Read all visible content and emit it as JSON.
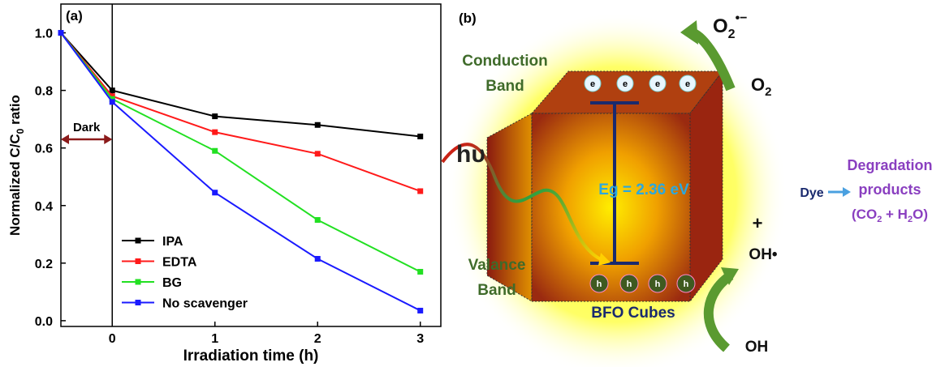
{
  "chart_data": {
    "type": "line",
    "panel_label": "(a)",
    "x_label": "Irradiation time (h)",
    "y_label": {
      "main": "Normalized C/C",
      "sub": "0",
      "rest": " ratio"
    },
    "x": [
      -0.5,
      0,
      1,
      2,
      3
    ],
    "series": [
      {
        "name": "IPA",
        "color": "#000000",
        "values": [
          1.0,
          0.8,
          0.71,
          0.68,
          0.64
        ]
      },
      {
        "name": "EDTA",
        "color": "#ff1a1a",
        "values": [
          1.0,
          0.78,
          0.655,
          0.58,
          0.45
        ]
      },
      {
        "name": "BG",
        "color": "#22e022",
        "values": [
          1.0,
          0.77,
          0.59,
          0.35,
          0.17
        ]
      },
      {
        "name": "No scavenger",
        "color": "#1a1aff",
        "values": [
          1.0,
          0.76,
          0.445,
          0.215,
          0.035
        ]
      }
    ],
    "xlim": [
      -0.5,
      3.2
    ],
    "xticks": [
      0,
      1,
      2,
      3
    ],
    "ylim": [
      -0.02,
      1.1
    ],
    "yticks": [
      {
        "value": 0,
        "label": "0.0"
      },
      0.2,
      0.4,
      0.6,
      0.8,
      {
        "value": 1,
        "label": "1.0"
      }
    ],
    "dark_label": "Dark",
    "dark_period": [
      -0.5,
      0
    ],
    "legend": "lower left"
  },
  "diagram": {
    "panel_label": "(b)",
    "conduction_band": [
      "Conduction",
      "Band"
    ],
    "valence_band": [
      "Valance",
      "Band"
    ],
    "photon": "hυ",
    "band_gap": "Eg = 2.36 eV",
    "material": "BFO Cubes",
    "electron": "e",
    "hole": "h",
    "superoxide": {
      "base": "O",
      "sub": "2",
      "sup": "•−"
    },
    "oxygen": {
      "base": "O",
      "sub": "2"
    },
    "dye": "Dye",
    "plus": "+",
    "hydroxyl_radical": "OH•",
    "hydroxide": "OH",
    "products": {
      "line1": "Degradation",
      "line2": "products",
      "a": "(CO",
      "b": "2",
      "c": " + H",
      "d": "2",
      "e": "O)"
    }
  }
}
